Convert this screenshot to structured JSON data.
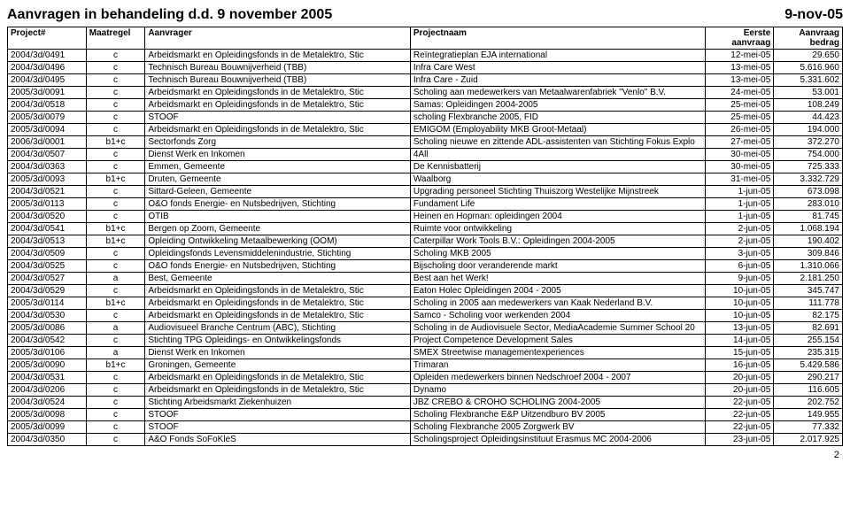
{
  "header": {
    "title": "Aanvragen in behandeling d.d. 9 november 2005",
    "date_right": "9-nov-05"
  },
  "columns": {
    "project": "Project#",
    "maatregel": "Maatregel",
    "aanvrager": "Aanvrager",
    "projectnaam": "Projectnaam",
    "eerste_l1": "Eerste",
    "eerste_l2": "aanvraag",
    "bedrag_l1": "Aanvraag",
    "bedrag_l2": "bedrag"
  },
  "col_widths": {
    "project": "80px",
    "maatregel": "60px",
    "aanvrager": "270px",
    "projectnaam": "300px",
    "eerste": "70px",
    "bedrag": "70px"
  },
  "rows": [
    {
      "p": "2004/3d/0491",
      "m": "c",
      "a": "Arbeidsmarkt en Opleidingsfonds in de Metalektro, Stic",
      "n": "Reïntegratieplan EJA international",
      "d": "12-mei-05",
      "b": "29.650"
    },
    {
      "p": "2004/3d/0496",
      "m": "c",
      "a": "Technisch Bureau Bouwnijverheid (TBB)",
      "n": "Infra Care West",
      "d": "13-mei-05",
      "b": "5.616.960"
    },
    {
      "p": "2004/3d/0495",
      "m": "c",
      "a": "Technisch Bureau Bouwnijverheid (TBB)",
      "n": "Infra Care - Zuid",
      "d": "13-mei-05",
      "b": "5.331.602"
    },
    {
      "p": "2005/3d/0091",
      "m": "c",
      "a": "Arbeidsmarkt en Opleidingsfonds in de Metalektro, Stic",
      "n": "Scholing aan medewerkers van Metaalwarenfabriek \"Venlo\" B.V.",
      "d": "24-mei-05",
      "b": "53.001"
    },
    {
      "p": "2004/3d/0518",
      "m": "c",
      "a": "Arbeidsmarkt en Opleidingsfonds in de Metalektro, Stic",
      "n": "Samas: Opleidingen 2004-2005",
      "d": "25-mei-05",
      "b": "108.249"
    },
    {
      "p": "2005/3d/0079",
      "m": "c",
      "a": "STOOF",
      "n": "scholing Flexbranche 2005, FID",
      "d": "25-mei-05",
      "b": "44.423"
    },
    {
      "p": "2005/3d/0094",
      "m": "c",
      "a": "Arbeidsmarkt en Opleidingsfonds in de Metalektro, Stic",
      "n": "EMIGOM (Employability MKB Groot-Metaal)",
      "d": "26-mei-05",
      "b": "194.000"
    },
    {
      "p": "2006/3d/0001",
      "m": "b1+c",
      "a": "Sectorfonds Zorg",
      "n": "Scholing nieuwe en zittende ADL-assistenten van Stichting Fokus Explo",
      "d": "27-mei-05",
      "b": "372.270"
    },
    {
      "p": "2004/3d/0507",
      "m": "c",
      "a": "Dienst Werk en Inkomen",
      "n": "4All",
      "d": "30-mei-05",
      "b": "754.000"
    },
    {
      "p": "2004/3d/0363",
      "m": "c",
      "a": "Emmen, Gemeente",
      "n": "De Kennisbatterij",
      "d": "30-mei-05",
      "b": "725.333"
    },
    {
      "p": "2005/3d/0093",
      "m": "b1+c",
      "a": "Druten, Gemeente",
      "n": "Waalborg",
      "d": "31-mei-05",
      "b": "3.332.729"
    },
    {
      "p": "2004/3d/0521",
      "m": "c",
      "a": "Sittard-Geleen, Gemeente",
      "n": "Upgrading personeel Stichting Thuiszorg Westelijke Mijnstreek",
      "d": "1-jun-05",
      "b": "673.098"
    },
    {
      "p": "2005/3d/0113",
      "m": "c",
      "a": "O&O fonds Energie- en Nutsbedrijven, Stichting",
      "n": "Fundament Life",
      "d": "1-jun-05",
      "b": "283.010"
    },
    {
      "p": "2004/3d/0520",
      "m": "c",
      "a": "OTIB",
      "n": "Heinen en Hopman: opleidingen 2004",
      "d": "1-jun-05",
      "b": "81.745"
    },
    {
      "p": "2004/3d/0541",
      "m": "b1+c",
      "a": "Bergen op Zoom, Gemeente",
      "n": "Ruimte voor ontwikkeling",
      "d": "2-jun-05",
      "b": "1.068.194"
    },
    {
      "p": "2004/3d/0513",
      "m": "b1+c",
      "a": "Opleiding Ontwikkeling Metaalbewerking (OOM)",
      "n": "Caterpillar Work Tools B.V.: Opleidingen 2004-2005",
      "d": "2-jun-05",
      "b": "190.402"
    },
    {
      "p": "2004/3d/0509",
      "m": "c",
      "a": "Opleidingsfonds Levensmiddelenindustrie, Stichting",
      "n": "Scholing MKB 2005",
      "d": "3-jun-05",
      "b": "309.846"
    },
    {
      "p": "2004/3d/0525",
      "m": "c",
      "a": "O&O fonds Energie- en Nutsbedrijven, Stichting",
      "n": "Bijscholing door veranderende markt",
      "d": "6-jun-05",
      "b": "1.310.066"
    },
    {
      "p": "2004/3d/0527",
      "m": "a",
      "a": "Best, Gemeente",
      "n": "Best aan het Werk!",
      "d": "9-jun-05",
      "b": "2.181.250"
    },
    {
      "p": "2004/3d/0529",
      "m": "c",
      "a": "Arbeidsmarkt en Opleidingsfonds in de Metalektro, Stic",
      "n": "Eaton Holec Opleidingen 2004 - 2005",
      "d": "10-jun-05",
      "b": "345.747"
    },
    {
      "p": "2005/3d/0114",
      "m": "b1+c",
      "a": "Arbeidsmarkt en Opleidingsfonds in de Metalektro, Stic",
      "n": "Scholing in 2005 aan medewerkers van Kaak Nederland B.V.",
      "d": "10-jun-05",
      "b": "111.778"
    },
    {
      "p": "2004/3d/0530",
      "m": "c",
      "a": "Arbeidsmarkt en Opleidingsfonds in de Metalektro, Stic",
      "n": "Samco - Scholing voor werkenden 2004",
      "d": "10-jun-05",
      "b": "82.175"
    },
    {
      "p": "2005/3d/0086",
      "m": "a",
      "a": "Audiovisueel Branche Centrum (ABC), Stichting",
      "n": "Scholing in de Audiovisuele Sector, MediaAcademie Summer School 20",
      "d": "13-jun-05",
      "b": "82.691"
    },
    {
      "p": "2004/3d/0542",
      "m": "c",
      "a": "Stichting TPG Opleidings- en Ontwikkelingsfonds",
      "n": "Project Competence Development Sales",
      "d": "14-jun-05",
      "b": "255.154"
    },
    {
      "p": "2005/3d/0106",
      "m": "a",
      "a": "Dienst Werk en Inkomen",
      "n": "SMEX Streetwise managementexperiences",
      "d": "15-jun-05",
      "b": "235.315"
    },
    {
      "p": "2005/3d/0090",
      "m": "b1+c",
      "a": "Groningen, Gemeente",
      "n": "Trimaran",
      "d": "16-jun-05",
      "b": "5.429.586"
    },
    {
      "p": "2004/3d/0531",
      "m": "c",
      "a": "Arbeidsmarkt en Opleidingsfonds in de Metalektro, Stic",
      "n": "Opleiden medewerkers binnen Nedschroef 2004 - 2007",
      "d": "20-jun-05",
      "b": "290.217"
    },
    {
      "p": "2004/3d/0206",
      "m": "c",
      "a": "Arbeidsmarkt en Opleidingsfonds in de Metalektro, Stic",
      "n": "Dynamo",
      "d": "20-jun-05",
      "b": "116.605"
    },
    {
      "p": "2004/3d/0524",
      "m": "c",
      "a": "Stichting Arbeidsmarkt Ziekenhuizen",
      "n": "JBZ CREBO & CROHO SCHOLING 2004-2005",
      "d": "22-jun-05",
      "b": "202.752"
    },
    {
      "p": "2005/3d/0098",
      "m": "c",
      "a": "STOOF",
      "n": "Scholing Flexbranche E&P Uitzendburo BV 2005",
      "d": "22-jun-05",
      "b": "149.955"
    },
    {
      "p": "2005/3d/0099",
      "m": "c",
      "a": "STOOF",
      "n": "Scholing Flexbranche 2005 Zorgwerk BV",
      "d": "22-jun-05",
      "b": "77.332"
    },
    {
      "p": "2004/3d/0350",
      "m": "c",
      "a": "A&O Fonds SoFoKleS",
      "n": "Scholingsproject Opleidingsinstituut Erasmus MC 2004-2006",
      "d": "23-jun-05",
      "b": "2.017.925"
    }
  ],
  "page_number": "2"
}
